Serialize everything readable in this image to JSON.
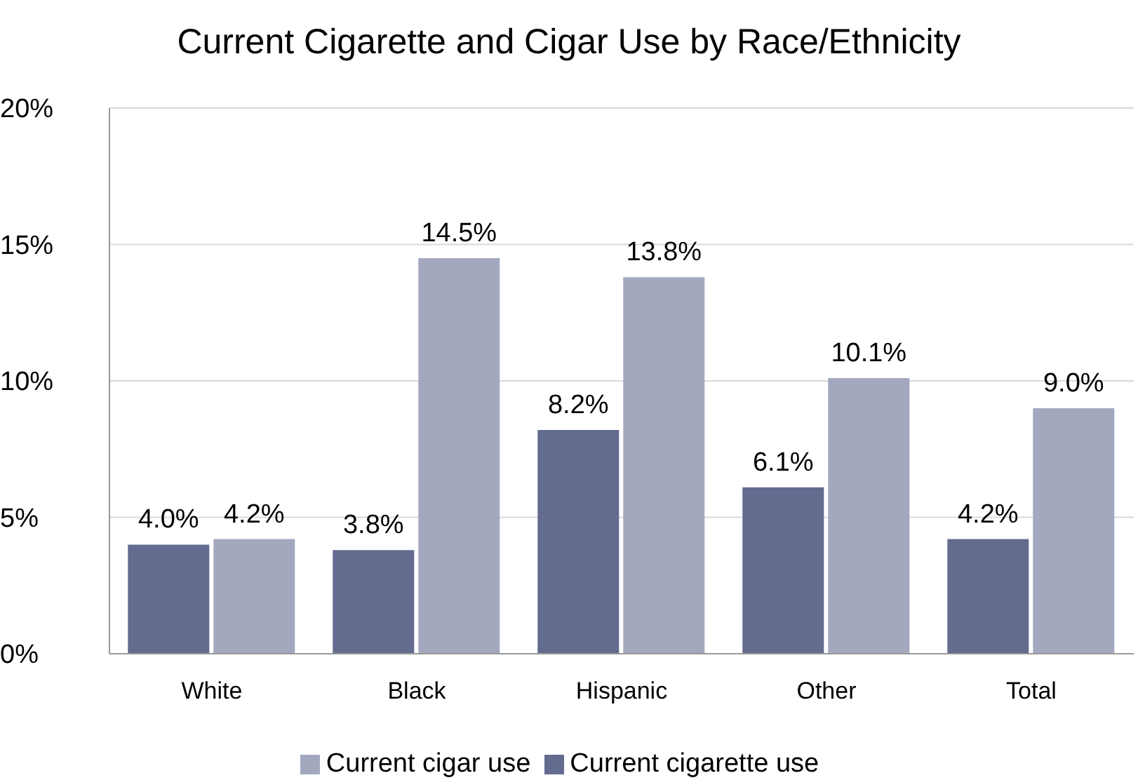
{
  "chart_data": {
    "type": "bar",
    "title": "Current Cigarette and Cigar Use by Race/Ethnicity",
    "categories": [
      "White",
      "Black",
      "Hispanic",
      "Other",
      "Total"
    ],
    "series": [
      {
        "name": "Current cigarette use",
        "color": "#636b8f",
        "values": [
          4.0,
          3.8,
          8.2,
          6.1,
          4.2
        ],
        "value_labels": [
          "4.0%",
          "3.8%",
          "8.2%",
          "6.1%",
          "4.2%"
        ]
      },
      {
        "name": "Current cigar use",
        "color": "#a3a8bf",
        "values": [
          4.2,
          14.5,
          13.8,
          10.1,
          9.0
        ],
        "value_labels": [
          "4.2%",
          "14.5%",
          "13.8%",
          "10.1%",
          "9.0%"
        ]
      }
    ],
    "ylim": [
      0,
      20
    ],
    "yticks": [
      {
        "value": 0,
        "label": "0%"
      },
      {
        "value": 5,
        "label": "5%"
      },
      {
        "value": 10,
        "label": "10%"
      },
      {
        "value": 15,
        "label": "15%"
      },
      {
        "value": 20,
        "label": "20%"
      }
    ],
    "grid": "y",
    "legend": "bottom"
  }
}
